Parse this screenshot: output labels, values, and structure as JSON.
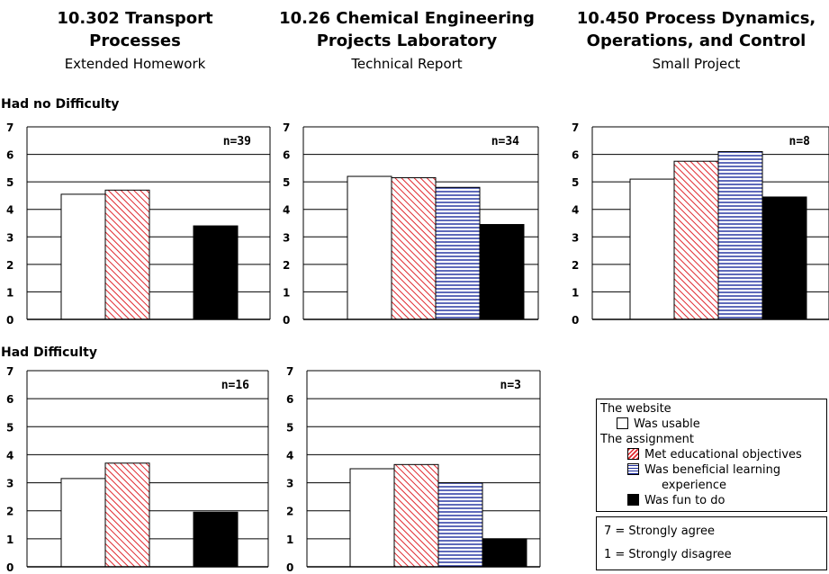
{
  "courses": [
    {
      "title_line1": "10.302 Transport",
      "title_line2": "Processes",
      "type": "Extended Homework"
    },
    {
      "title_line1": "10.26 Chemical Engineering",
      "title_line2": "Projects Laboratory",
      "type": "Technical Report"
    },
    {
      "title_line1": "10.450 Process Dynamics,",
      "title_line2": "Operations, and Control",
      "type": "Small Project"
    }
  ],
  "rows": {
    "no_difficulty": "Had no Difficulty",
    "difficulty": "Had Difficulty"
  },
  "legend": {
    "website_heading": "The website",
    "usable": "Was usable",
    "assignment_heading": "The assignment",
    "objectives": "Met educational objectives",
    "beneficial_line1": "Was beneficial learning",
    "beneficial_line2": "experience",
    "fun": "Was fun to do"
  },
  "scale": {
    "agree": "7 = Strongly agree",
    "disagree": "1 = Strongly disagree"
  },
  "colors": {
    "usable": "#ffffff",
    "objectives_stripe": "#e0282e",
    "beneficial_stripe": "#1a2a9c",
    "fun": "#000000"
  },
  "chart_data": [
    {
      "type": "bar",
      "course": "10.302 Transport Processes",
      "group": "Had no Difficulty",
      "n_label": "n=39",
      "ylim": [
        0,
        7
      ],
      "categories": [
        "Was usable",
        "Met educational objectives",
        "Was beneficial learning experience",
        "Was fun to do"
      ],
      "values": [
        4.55,
        4.7,
        null,
        3.4
      ]
    },
    {
      "type": "bar",
      "course": "10.26 Chemical Engineering Projects Laboratory",
      "group": "Had no Difficulty",
      "n_label": "n=34",
      "ylim": [
        0,
        7
      ],
      "categories": [
        "Was usable",
        "Met educational objectives",
        "Was beneficial learning experience",
        "Was fun to do"
      ],
      "values": [
        5.2,
        5.15,
        4.8,
        3.45
      ]
    },
    {
      "type": "bar",
      "course": "10.450 Process Dynamics, Operations, and Control",
      "group": "Had no Difficulty",
      "n_label": "n=8",
      "ylim": [
        0,
        7
      ],
      "categories": [
        "Was usable",
        "Met educational objectives",
        "Was beneficial learning experience",
        "Was fun to do"
      ],
      "values": [
        5.1,
        5.75,
        6.1,
        4.45
      ]
    },
    {
      "type": "bar",
      "course": "10.302 Transport Processes",
      "group": "Had Difficulty",
      "n_label": "n=16",
      "ylim": [
        0,
        7
      ],
      "categories": [
        "Was usable",
        "Met educational objectives",
        "Was beneficial learning experience",
        "Was fun to do"
      ],
      "values": [
        3.15,
        3.7,
        null,
        1.95
      ]
    },
    {
      "type": "bar",
      "course": "10.26 Chemical Engineering Projects Laboratory",
      "group": "Had Difficulty",
      "n_label": "n=3",
      "ylim": [
        0,
        7
      ],
      "categories": [
        "Was usable",
        "Met educational objectives",
        "Was beneficial learning experience",
        "Was fun to do"
      ],
      "values": [
        3.5,
        3.65,
        3.0,
        1.0
      ]
    }
  ]
}
